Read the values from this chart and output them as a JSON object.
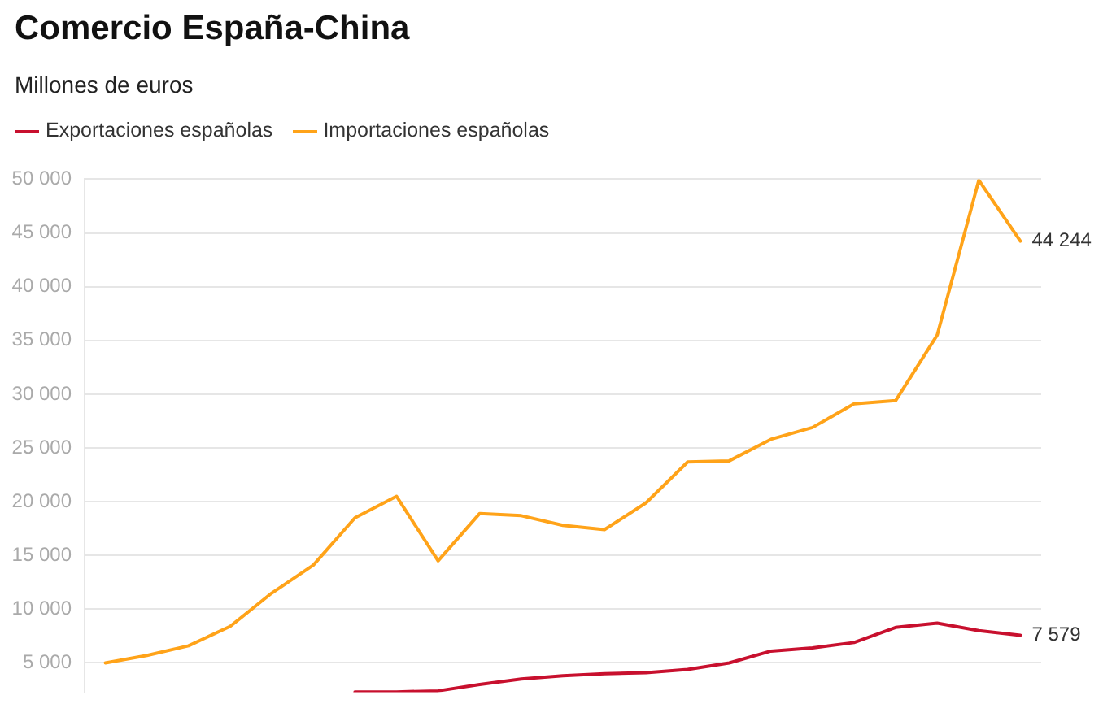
{
  "chart_data": {
    "type": "line",
    "title": "Comercio España-China",
    "subtitle": "Millones de euros",
    "categories": [
      null,
      null,
      null,
      null,
      null,
      null,
      null,
      null,
      null,
      null,
      null,
      null,
      null,
      null,
      null,
      null,
      null,
      null,
      null,
      null,
      null,
      null,
      null
    ],
    "series": [
      {
        "name": "Exportaciones españolas",
        "color": "#c8102e",
        "values": [
          null,
          null,
          null,
          null,
          null,
          null,
          2300,
          2300,
          2400,
          3000,
          3500,
          3800,
          4000,
          4100,
          4400,
          5000,
          6100,
          6400,
          6900,
          8300,
          8700,
          8000,
          7579
        ],
        "value_labels": [
          null,
          null,
          null,
          null,
          null,
          null,
          null,
          null,
          null,
          null,
          null,
          null,
          null,
          null,
          null,
          null,
          null,
          null,
          null,
          null,
          null,
          null,
          "7 579"
        ]
      },
      {
        "name": "Importaciones españolas",
        "color": "#ffa319",
        "values": [
          5000,
          5700,
          6600,
          8400,
          11500,
          14100,
          18500,
          20500,
          14500,
          18900,
          18700,
          17800,
          17400,
          19900,
          23700,
          23800,
          25800,
          26900,
          29100,
          29400,
          35500,
          49900,
          44244
        ],
        "value_labels": [
          null,
          null,
          null,
          null,
          null,
          null,
          null,
          null,
          null,
          null,
          null,
          null,
          null,
          null,
          null,
          null,
          null,
          null,
          null,
          null,
          null,
          null,
          "44 244"
        ]
      }
    ],
    "ylim": [
      2270,
      50000
    ],
    "yticks": [
      {
        "value": 5000,
        "label": "5 000"
      },
      {
        "value": 10000,
        "label": "10 000"
      },
      {
        "value": 15000,
        "label": "15 000"
      },
      {
        "value": 20000,
        "label": "20 000"
      },
      {
        "value": 25000,
        "label": "25 000"
      },
      {
        "value": 30000,
        "label": "30 000"
      },
      {
        "value": 35000,
        "label": "35 000"
      },
      {
        "value": 40000,
        "label": "40 000"
      },
      {
        "value": 45000,
        "label": "45 000"
      },
      {
        "value": 50000,
        "label": "50 000"
      }
    ],
    "grid": "y",
    "legend": "top left",
    "tick_labels": "y",
    "marker": "none",
    "line_style": "solid"
  }
}
